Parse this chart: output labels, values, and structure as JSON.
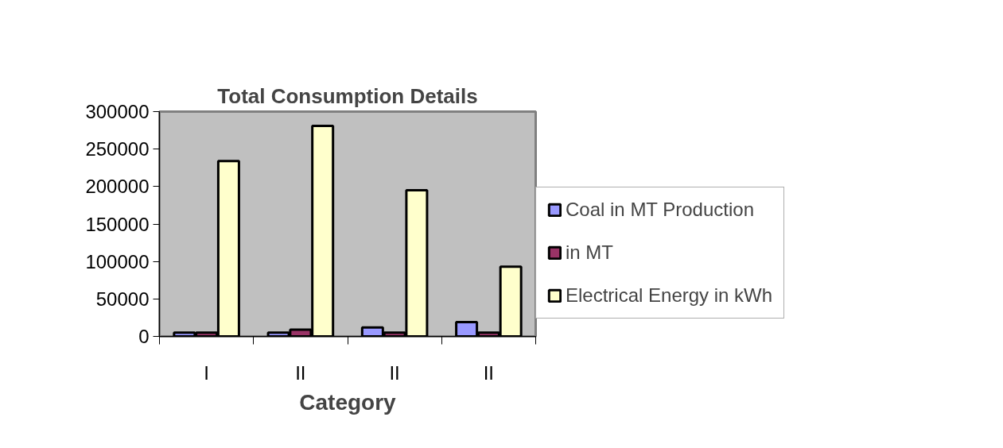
{
  "chart_data": {
    "type": "bar",
    "title": "Total Consumption Details",
    "xlabel": "Category",
    "categories": [
      "I",
      "II",
      "II",
      "II"
    ],
    "series": [
      {
        "name": "Coal in MT Production",
        "color": "#9999ff",
        "values": [
          5000,
          5000,
          12000,
          19000
        ]
      },
      {
        "name": "in MT",
        "color": "#993366",
        "values": [
          5000,
          9000,
          5000,
          5000
        ]
      },
      {
        "name": "Electrical Energy in kWh",
        "color": "#ffffcc",
        "values": [
          234000,
          281000,
          195000,
          93000
        ]
      }
    ],
    "ylim": [
      0,
      300000
    ],
    "yticks": [
      0,
      50000,
      100000,
      150000,
      200000,
      250000,
      300000
    ],
    "grid": false,
    "legend": "right"
  }
}
